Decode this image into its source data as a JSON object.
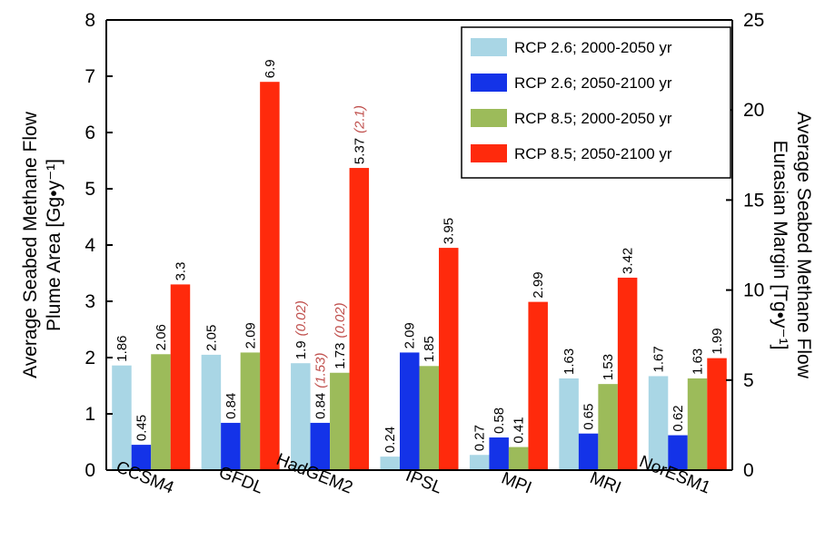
{
  "chart_data": {
    "type": "bar",
    "ylabel": [
      "Average Seabed Methane Flow",
      "Plume Area [Gg•y⁻¹]"
    ],
    "y2label": [
      "Average Seabed Methane Flow",
      "Eurasian Margin [Tg•y⁻¹]"
    ],
    "categories": [
      "CCSM4",
      "GFDL",
      "HadGEM2",
      "IPSL",
      "MPI",
      "MRI",
      "NorESM1"
    ],
    "ylim": [
      0,
      8
    ],
    "yticks": [
      0,
      1,
      2,
      3,
      4,
      5,
      6,
      7,
      8
    ],
    "y2lim": [
      0,
      25
    ],
    "y2ticks": [
      0,
      5,
      10,
      15,
      20,
      25
    ],
    "legend": "upper right",
    "series": [
      {
        "name": "RCP 2.6; 2000-2050 yr",
        "color": "#a9d6e5",
        "values": [
          1.86,
          2.05,
          1.9,
          0.24,
          0.27,
          1.63,
          1.67
        ],
        "value_notes": [
          null,
          null,
          "(0.02)",
          null,
          null,
          null,
          null
        ]
      },
      {
        "name": "RCP 2.6; 2050-2100 yr",
        "color": "#1433e8",
        "values": [
          0.45,
          0.84,
          0.84,
          2.09,
          0.58,
          0.65,
          0.62
        ],
        "value_notes": [
          null,
          null,
          "(1.53)",
          null,
          null,
          null,
          null
        ]
      },
      {
        "name": "RCP 8.5; 2000-2050 yr",
        "color": "#9cbb5a",
        "values": [
          2.06,
          2.09,
          1.73,
          1.85,
          0.41,
          1.53,
          1.63
        ],
        "value_notes": [
          null,
          null,
          "(0.02)",
          null,
          null,
          null,
          null
        ]
      },
      {
        "name": "RCP 8.5; 2050-2100 yr",
        "color": "#ff2a0c",
        "values": [
          3.3,
          6.9,
          5.37,
          3.95,
          2.99,
          3.42,
          1.99
        ],
        "value_notes": [
          null,
          null,
          "(2.1)",
          null,
          null,
          null,
          null
        ]
      }
    ]
  }
}
